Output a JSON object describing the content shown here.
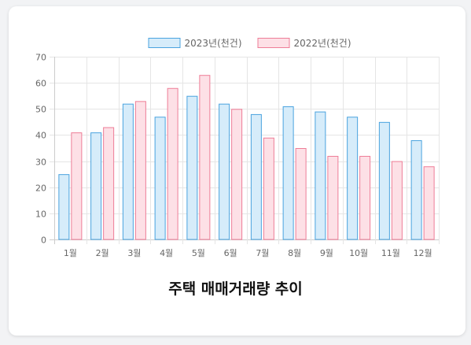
{
  "chart_data": {
    "type": "bar",
    "title": "주택 매매거래량 추이",
    "categories": [
      "1월",
      "2월",
      "3월",
      "4월",
      "5월",
      "6월",
      "7월",
      "8월",
      "9월",
      "10월",
      "11월",
      "12월"
    ],
    "series": [
      {
        "name": "2023년(천건)",
        "values": [
          25,
          41,
          52,
          47,
          55,
          52,
          48,
          51,
          49,
          47,
          45,
          38
        ],
        "fill": "#d6ecfa",
        "stroke": "#4aa3df"
      },
      {
        "name": "2022년(천건)",
        "values": [
          41,
          43,
          53,
          58,
          63,
          50,
          39,
          35,
          32,
          32,
          30,
          28
        ],
        "fill": "#fde0e6",
        "stroke": "#ee7d97"
      }
    ],
    "ylim": [
      0,
      70
    ],
    "yticks": [
      0,
      10,
      20,
      30,
      40,
      50,
      60,
      70
    ],
    "grid": true,
    "legend_position": "top"
  }
}
